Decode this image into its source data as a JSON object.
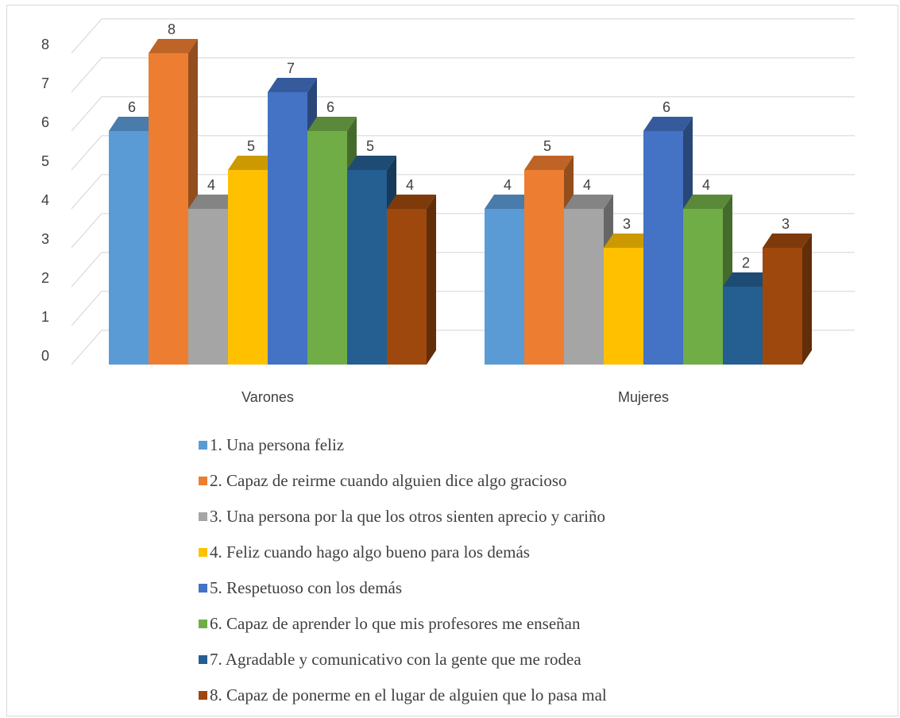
{
  "chart_data": {
    "type": "bar",
    "categories": [
      "Varones",
      "Mujeres"
    ],
    "series": [
      {
        "name": "1. Una persona feliz",
        "values": [
          6,
          4
        ],
        "color": "#5b9bd5"
      },
      {
        "name": "2. Capaz de reirme cuando alguien dice algo gracioso",
        "values": [
          8,
          5
        ],
        "color": "#ed7d31"
      },
      {
        "name": "3. Una persona por la que los otros sienten aprecio y cariño",
        "values": [
          4,
          4
        ],
        "color": "#a5a5a5"
      },
      {
        "name": "4. Feliz cuando hago algo bueno para los demás",
        "values": [
          5,
          3
        ],
        "color": "#ffc000"
      },
      {
        "name": "5. Respetuoso con los demás",
        "values": [
          7,
          6
        ],
        "color": "#4472c4"
      },
      {
        "name": "6. Capaz de aprender lo que mis profesores me enseñan",
        "values": [
          6,
          4
        ],
        "color": "#70ad47"
      },
      {
        "name": "7. Agradable y comunicativo con la gente que me rodea",
        "values": [
          5,
          2
        ],
        "color": "#255e91"
      },
      {
        "name": "8. Capaz de ponerme en el lugar de alguien que lo pasa mal",
        "values": [
          4,
          3
        ],
        "color": "#9e480e"
      }
    ],
    "yticks": [
      "0",
      "1",
      "2",
      "3",
      "4",
      "5",
      "6",
      "7",
      "8"
    ],
    "ylim": [
      0,
      8
    ],
    "grid": true,
    "three_d": true,
    "legend_position": "bottom"
  }
}
